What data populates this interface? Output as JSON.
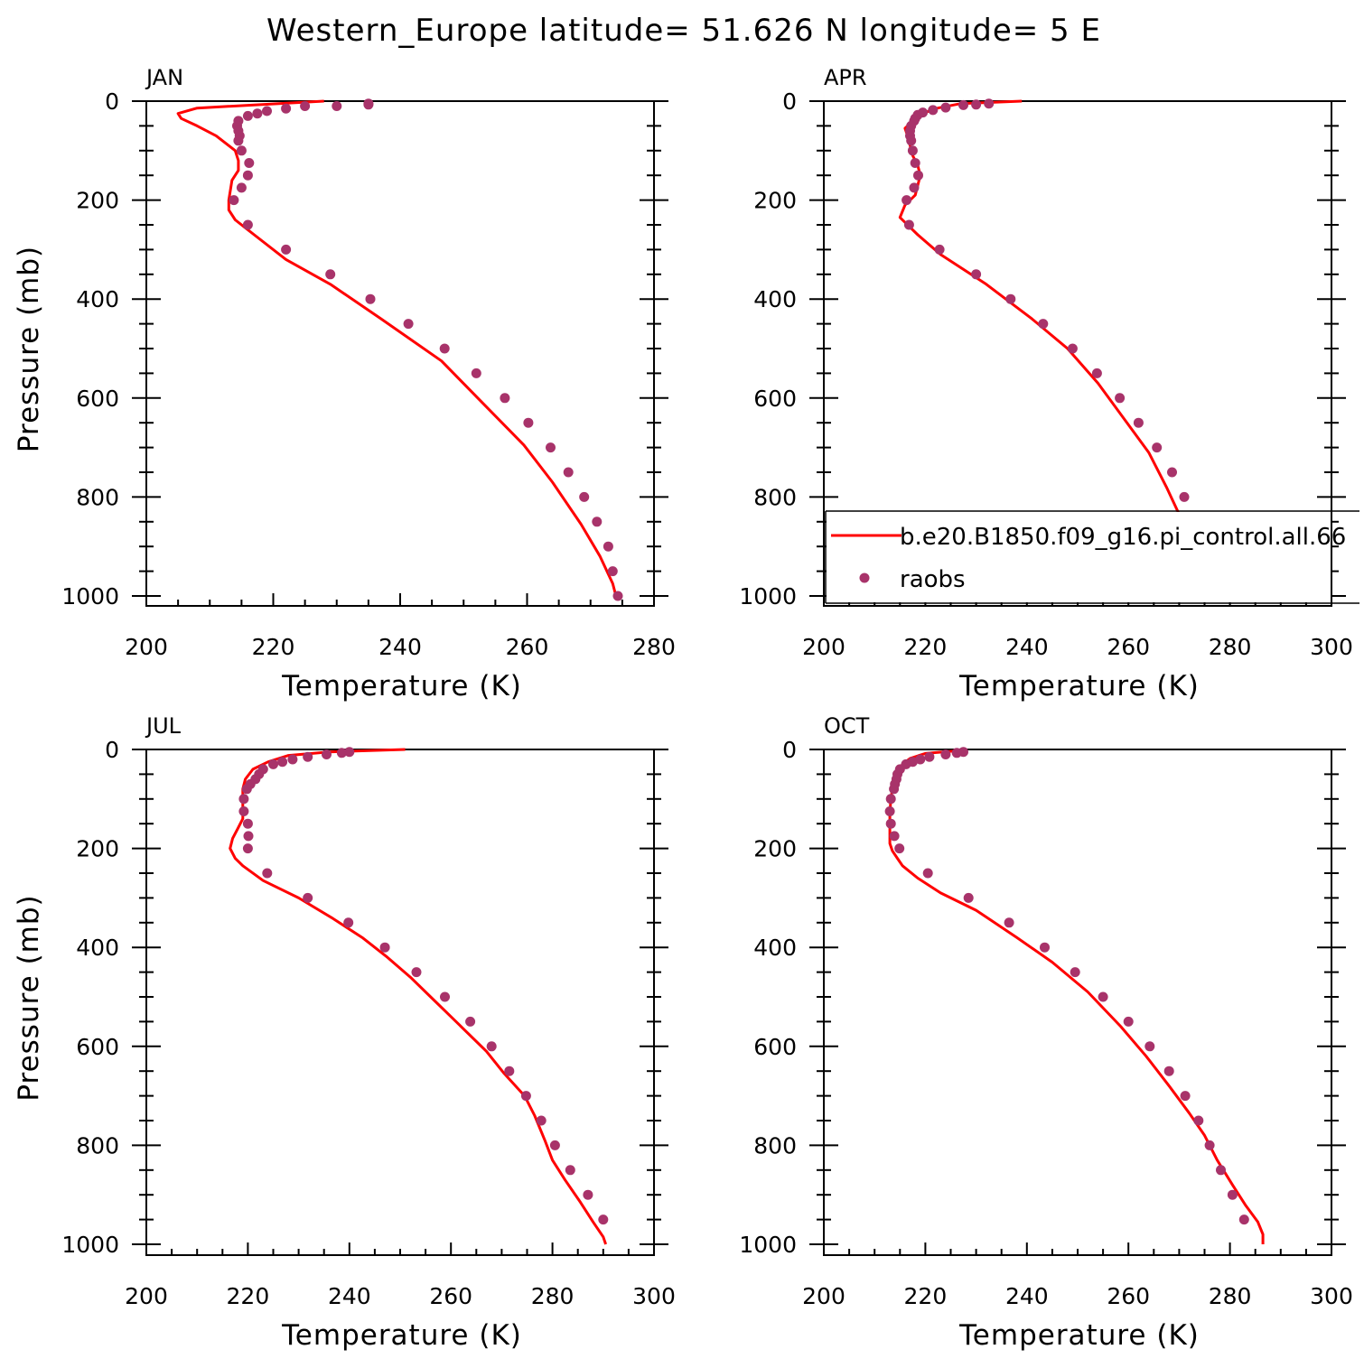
{
  "title": "Western_Europe  latitude= 51.626 N longitude= 5 E",
  "colors": {
    "model": "#ff0000",
    "obs": "#a8336a",
    "axis": "#000000"
  },
  "legend": {
    "model_label": "b.e20.B1850.f09_g16.pi_control.all.66",
    "obs_label": "raobs",
    "placement": "bottom of APR panel"
  },
  "chart_data": [
    {
      "type": "line",
      "panel": "JAN",
      "xlabel": "Temperature (K)",
      "ylabel": "Pressure (mb)",
      "xlim": [
        200,
        280
      ],
      "ylim": [
        1000,
        0
      ],
      "x_ticks": [
        200,
        220,
        240,
        260,
        280
      ],
      "y_ticks": [
        0,
        200,
        400,
        600,
        800,
        1000
      ],
      "series": [
        {
          "name": "b.e20.B1850.f09_g16.pi_control.all.66",
          "type": "line",
          "points": [
            [
              228,
              0
            ],
            [
              208,
              14
            ],
            [
              205,
              25
            ],
            [
              205.5,
              35
            ],
            [
              208,
              50
            ],
            [
              211,
              70
            ],
            [
              213,
              90
            ],
            [
              214,
              100
            ],
            [
              214.5,
              120
            ],
            [
              214.5,
              140
            ],
            [
              213.5,
              160
            ],
            [
              213,
              200
            ],
            [
              213,
              220
            ],
            [
              214,
              240
            ],
            [
              217,
              270
            ],
            [
              222,
              320
            ],
            [
              229,
              370
            ],
            [
              237,
              440
            ],
            [
              246.5,
              525
            ],
            [
              253,
              610
            ],
            [
              259.5,
              695
            ],
            [
              264,
              770
            ],
            [
              268.5,
              855
            ],
            [
              271.5,
              920
            ],
            [
              273.5,
              975
            ],
            [
              274,
              1000
            ]
          ]
        },
        {
          "name": "raobs",
          "type": "scatter",
          "points": [
            [
              235,
              5
            ],
            [
              235,
              7
            ],
            [
              230,
              10
            ],
            [
              225,
              10
            ],
            [
              222,
              15
            ],
            [
              219,
              20
            ],
            [
              217.5,
              25
            ],
            [
              216,
              30
            ],
            [
              214.5,
              40
            ],
            [
              214.3,
              50
            ],
            [
              214.5,
              60
            ],
            [
              214.7,
              70
            ],
            [
              214.5,
              80
            ],
            [
              215,
              100
            ],
            [
              216.2,
              125
            ],
            [
              216,
              150
            ],
            [
              215,
              175
            ],
            [
              213.8,
              200
            ],
            [
              216,
              250
            ],
            [
              222,
              300
            ],
            [
              229,
              350
            ],
            [
              235.3,
              400
            ],
            [
              241.3,
              450
            ],
            [
              247,
              500
            ],
            [
              252,
              550
            ],
            [
              256.5,
              600
            ],
            [
              260.2,
              650
            ],
            [
              263.7,
              700
            ],
            [
              266.5,
              750
            ],
            [
              269,
              800
            ],
            [
              271,
              850
            ],
            [
              272.8,
              900
            ],
            [
              273.5,
              950
            ],
            [
              274.3,
              1000
            ]
          ]
        }
      ]
    },
    {
      "type": "line",
      "panel": "APR",
      "xlabel": "Temperature (K)",
      "ylabel": "",
      "xlim": [
        200,
        300
      ],
      "ylim": [
        1000,
        0
      ],
      "x_ticks": [
        200,
        220,
        240,
        260,
        280,
        300
      ],
      "y_ticks": [
        0,
        200,
        400,
        600,
        800,
        1000
      ],
      "series": [
        {
          "name": "b.e20.B1850.f09_g16.pi_control.all.66",
          "type": "line",
          "points": [
            [
              239,
              0
            ],
            [
              227,
              5
            ],
            [
              222,
              15
            ],
            [
              219.5,
              25
            ],
            [
              217.5,
              40
            ],
            [
              216,
              55
            ],
            [
              216.5,
              70
            ],
            [
              217,
              90
            ],
            [
              217.5,
              110
            ],
            [
              218.5,
              130
            ],
            [
              219,
              150
            ],
            [
              218.5,
              170
            ],
            [
              218,
              190
            ],
            [
              216,
              210
            ],
            [
              215,
              235
            ],
            [
              218.5,
              270
            ],
            [
              223,
              310
            ],
            [
              232,
              370
            ],
            [
              241,
              440
            ],
            [
              248,
              500
            ],
            [
              254,
              570
            ],
            [
              259,
              640
            ],
            [
              264,
              710
            ],
            [
              267.5,
              780
            ],
            [
              270,
              835
            ],
            [
              273,
              885
            ],
            [
              276,
              930
            ],
            [
              279,
              965
            ],
            [
              280.5,
              990
            ],
            [
              281,
              1000
            ]
          ]
        },
        {
          "name": "raobs",
          "type": "scatter",
          "points": [
            [
              232.5,
              5
            ],
            [
              230,
              7
            ],
            [
              227.5,
              8
            ],
            [
              224,
              13
            ],
            [
              221.5,
              18
            ],
            [
              219.5,
              23
            ],
            [
              218.5,
              28
            ],
            [
              218,
              35
            ],
            [
              217.8,
              40
            ],
            [
              217.2,
              50
            ],
            [
              217,
              60
            ],
            [
              217,
              70
            ],
            [
              217.2,
              80
            ],
            [
              217.5,
              100
            ],
            [
              218,
              125
            ],
            [
              218.6,
              150
            ],
            [
              217.8,
              175
            ],
            [
              216.3,
              200
            ],
            [
              216.8,
              250
            ],
            [
              222.8,
              300
            ],
            [
              230,
              350
            ],
            [
              236.8,
              400
            ],
            [
              243.2,
              450
            ],
            [
              249,
              500
            ],
            [
              253.8,
              550
            ],
            [
              258.3,
              600
            ],
            [
              262,
              650
            ],
            [
              265.6,
              700
            ],
            [
              268.6,
              750
            ],
            [
              271,
              800
            ],
            [
              274,
              850
            ],
            [
              276.7,
              900
            ],
            [
              280.5,
              950
            ]
          ]
        }
      ]
    },
    {
      "type": "line",
      "panel": "JUL",
      "xlabel": "Temperature (K)",
      "ylabel": "Pressure (mb)",
      "xlim": [
        200,
        300
      ],
      "ylim": [
        1000,
        0
      ],
      "x_ticks": [
        200,
        220,
        240,
        260,
        280,
        300
      ],
      "y_ticks": [
        0,
        200,
        400,
        600,
        800,
        1000
      ],
      "series": [
        {
          "name": "b.e20.B1850.f09_g16.pi_control.all.66",
          "type": "line",
          "points": [
            [
              251,
              0
            ],
            [
              236,
              5
            ],
            [
              228,
              12
            ],
            [
              224,
              25
            ],
            [
              221,
              40
            ],
            [
              219.5,
              60
            ],
            [
              219,
              80
            ],
            [
              219,
              100
            ],
            [
              219,
              120
            ],
            [
              219,
              140
            ],
            [
              218,
              160
            ],
            [
              217,
              180
            ],
            [
              216.5,
              200
            ],
            [
              217.5,
              220
            ],
            [
              219,
              235
            ],
            [
              223,
              265
            ],
            [
              230,
              300
            ],
            [
              236.5,
              340
            ],
            [
              242.5,
              380
            ],
            [
              247.5,
              420
            ],
            [
              252,
              460
            ],
            [
              256,
              500
            ],
            [
              259,
              530
            ],
            [
              263,
              570
            ],
            [
              267,
              610
            ],
            [
              270.5,
              655
            ],
            [
              274.5,
              700
            ],
            [
              276.5,
              740
            ],
            [
              278.5,
              790
            ],
            [
              280,
              830
            ],
            [
              282.5,
              870
            ],
            [
              285.5,
              915
            ],
            [
              288,
              955
            ],
            [
              290,
              985
            ],
            [
              290.5,
              1000
            ]
          ]
        },
        {
          "name": "raobs",
          "type": "scatter",
          "points": [
            [
              240,
              5
            ],
            [
              238.5,
              7
            ],
            [
              235.5,
              10
            ],
            [
              231.8,
              15
            ],
            [
              228.8,
              20
            ],
            [
              226.8,
              25
            ],
            [
              225,
              30
            ],
            [
              223,
              40
            ],
            [
              222.2,
              50
            ],
            [
              221.5,
              60
            ],
            [
              220.5,
              70
            ],
            [
              219.8,
              80
            ],
            [
              219.2,
              100
            ],
            [
              219.2,
              125
            ],
            [
              220,
              150
            ],
            [
              220.1,
              175
            ],
            [
              220,
              200
            ],
            [
              223.8,
              250
            ],
            [
              231.8,
              300
            ],
            [
              239.8,
              350
            ],
            [
              247,
              400
            ],
            [
              253.2,
              450
            ],
            [
              258.8,
              500
            ],
            [
              263.8,
              550
            ],
            [
              268,
              600
            ],
            [
              271.5,
              650
            ],
            [
              274.8,
              700
            ],
            [
              277.8,
              750
            ],
            [
              280.5,
              800
            ],
            [
              283.5,
              850
            ],
            [
              287,
              900
            ],
            [
              290,
              950
            ]
          ]
        }
      ]
    },
    {
      "type": "line",
      "panel": "OCT",
      "xlabel": "Temperature (K)",
      "ylabel": "",
      "xlim": [
        200,
        300
      ],
      "ylim": [
        1000,
        0
      ],
      "x_ticks": [
        200,
        220,
        240,
        260,
        280,
        300
      ],
      "y_ticks": [
        0,
        200,
        400,
        600,
        800,
        1000
      ],
      "series": [
        {
          "name": "b.e20.B1850.f09_g16.pi_control.all.66",
          "type": "line",
          "points": [
            [
              227,
              2
            ],
            [
              220,
              8
            ],
            [
              217,
              18
            ],
            [
              215.5,
              30
            ],
            [
              214.5,
              45
            ],
            [
              214,
              60
            ],
            [
              213.5,
              80
            ],
            [
              213.2,
              100
            ],
            [
              213,
              130
            ],
            [
              213,
              160
            ],
            [
              213,
              190
            ],
            [
              213.5,
              205
            ],
            [
              214.5,
              220
            ],
            [
              215.5,
              235
            ],
            [
              218.5,
              260
            ],
            [
              223,
              290
            ],
            [
              230,
              325
            ],
            [
              238,
              380
            ],
            [
              245,
              430
            ],
            [
              252,
              490
            ],
            [
              258.5,
              560
            ],
            [
              263.5,
              620
            ],
            [
              268,
              680
            ],
            [
              272,
              735
            ],
            [
              275,
              780
            ],
            [
              277.5,
              830
            ],
            [
              280.5,
              880
            ],
            [
              283,
              920
            ],
            [
              285.5,
              955
            ],
            [
              286.5,
              980
            ],
            [
              286.5,
              1000
            ]
          ]
        },
        {
          "name": "raobs",
          "type": "scatter",
          "points": [
            [
              227.5,
              5
            ],
            [
              226.2,
              7
            ],
            [
              224,
              10
            ],
            [
              220.8,
              15
            ],
            [
              219,
              20
            ],
            [
              217.5,
              25
            ],
            [
              216.2,
              30
            ],
            [
              215,
              40
            ],
            [
              214.5,
              50
            ],
            [
              214.3,
              60
            ],
            [
              214,
              70
            ],
            [
              213.8,
              80
            ],
            [
              213.2,
              100
            ],
            [
              213,
              125
            ],
            [
              213.2,
              150
            ],
            [
              213.9,
              175
            ],
            [
              214.9,
              200
            ],
            [
              220.5,
              250
            ],
            [
              228.5,
              300
            ],
            [
              236.5,
              350
            ],
            [
              243.5,
              400
            ],
            [
              249.5,
              450
            ],
            [
              255,
              500
            ],
            [
              260,
              550
            ],
            [
              264.2,
              600
            ],
            [
              268,
              650
            ],
            [
              271.2,
              700
            ],
            [
              273.8,
              750
            ],
            [
              276,
              800
            ],
            [
              278.2,
              850
            ],
            [
              280.5,
              900
            ],
            [
              282.8,
              950
            ]
          ]
        }
      ]
    }
  ]
}
